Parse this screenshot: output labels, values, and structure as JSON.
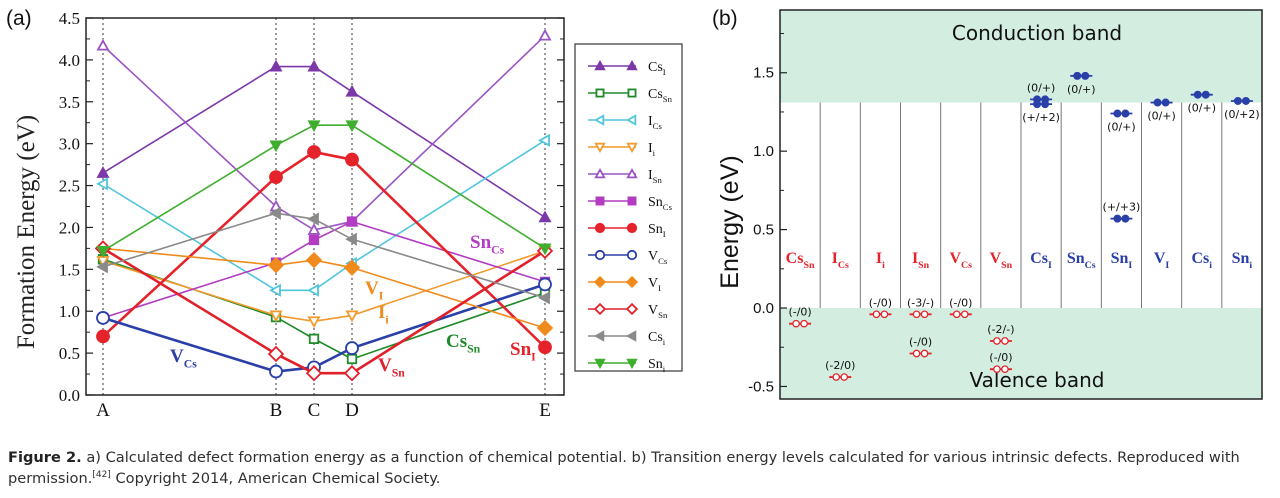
{
  "panel_a": {
    "label": "(a)",
    "ylabel": "Formation Energy (eV)",
    "y_ticks": [
      "0.0",
      "0.5",
      "1.0",
      "1.5",
      "2.0",
      "2.5",
      "3.0",
      "3.5",
      "4.0",
      "4.5"
    ],
    "x_points": [
      "A",
      "B",
      "C",
      "D",
      "E"
    ]
  },
  "panel_b": {
    "label": "(b)",
    "ylabel": "Energy (eV)",
    "y_ticks": [
      "-0.5",
      "0.0",
      "0.5",
      "1.0",
      "1.5"
    ],
    "conduction_band_label": "Conduction band",
    "valence_band_label": "Valence band"
  },
  "caption": {
    "figure_label": "Figure 2.",
    "text_a": " a) Calculated defect formation energy as a function of chemical potential. b) Transition energy levels calculated for various intrinsic defects. Reproduced with permission.",
    "ref": "[42]",
    "text_b": " Copyright 2014, American Chemical Society."
  },
  "chart_data": [
    {
      "type": "line",
      "title": "",
      "xlabel": "",
      "ylabel": "Formation Energy (eV)",
      "ylim": [
        0.0,
        4.5
      ],
      "categories": [
        "A",
        "B",
        "C",
        "D",
        "E"
      ],
      "series": [
        {
          "name": "Cs_I",
          "main": "Cs",
          "sub": "I",
          "color": "#7b38a8",
          "marker": "triangle-up",
          "filled": true,
          "values": [
            2.65,
            3.92,
            3.92,
            3.62,
            2.12
          ]
        },
        {
          "name": "Cs_Sn",
          "main": "Cs",
          "sub": "Sn",
          "color": "#1f8a2a",
          "marker": "square",
          "filled": false,
          "values": [
            1.62,
            0.93,
            0.67,
            0.43,
            1.22
          ]
        },
        {
          "name": "I_Cs",
          "main": "I",
          "sub": "Cs",
          "color": "#4fc6dc",
          "marker": "triangle-left",
          "filled": false,
          "values": [
            2.52,
            1.25,
            1.25,
            1.57,
            3.04
          ]
        },
        {
          "name": "I_i",
          "main": "I",
          "sub": "i",
          "color": "#f29a2e",
          "marker": "triangle-down",
          "filled": false,
          "values": [
            1.6,
            0.95,
            0.88,
            0.95,
            1.72
          ]
        },
        {
          "name": "I_Sn",
          "main": "I",
          "sub": "Sn",
          "color": "#9a55c2",
          "marker": "triangle-up",
          "filled": false,
          "values": [
            4.17,
            2.25,
            1.97,
            2.07,
            4.29
          ]
        },
        {
          "name": "Sn_Cs",
          "main": "Sn",
          "sub": "Cs",
          "color": "#b43cc2",
          "marker": "square",
          "filled": true,
          "values": [
            0.92,
            1.58,
            1.85,
            2.07,
            1.35
          ]
        },
        {
          "name": "Sn_I",
          "main": "Sn",
          "sub": "I",
          "color": "#e4232b",
          "marker": "circle",
          "filled": true,
          "values": [
            0.7,
            2.6,
            2.9,
            2.81,
            0.57
          ]
        },
        {
          "name": "V_Cs",
          "main": "V",
          "sub": "Cs",
          "color": "#2b3fa8",
          "marker": "circle",
          "filled": false,
          "values": [
            0.92,
            0.28,
            0.33,
            0.56,
            1.32
          ]
        },
        {
          "name": "V_I",
          "main": "V",
          "sub": "I",
          "color": "#f08a1c",
          "marker": "diamond",
          "filled": true,
          "values": [
            1.75,
            1.55,
            1.61,
            1.52,
            0.8
          ]
        },
        {
          "name": "V_Sn",
          "main": "V",
          "sub": "Sn",
          "color": "#e0202a",
          "marker": "diamond",
          "filled": false,
          "values": [
            1.75,
            0.49,
            0.26,
            0.26,
            1.72
          ]
        },
        {
          "name": "Cs_i",
          "main": "Cs",
          "sub": "i",
          "color": "#8a8a8a",
          "marker": "triangle-left",
          "filled": true,
          "values": [
            1.53,
            2.17,
            2.1,
            1.86,
            1.16
          ]
        },
        {
          "name": "Sn_i",
          "main": "Sn",
          "sub": "i",
          "color": "#3fae2e",
          "marker": "triangle-down",
          "filled": true,
          "values": [
            1.72,
            2.98,
            3.22,
            3.22,
            1.75
          ]
        }
      ],
      "annotations": [
        {
          "main": "V",
          "sub": "Cs",
          "color": "#2b3fa8",
          "note": "below V_Cs line, left of B"
        },
        {
          "main": "V",
          "sub": "I",
          "color": "#f08a1c",
          "note": "right of C, near 1.4"
        },
        {
          "main": "I",
          "sub": "i",
          "color": "#f08a1c",
          "note": "right of D, near 1.05"
        },
        {
          "main": "Cs",
          "sub": "Sn",
          "color": "#1f8a2a",
          "note": "near 0.75 between D and E"
        },
        {
          "main": "Sn",
          "sub": "I",
          "color": "#e4232b",
          "note": "near 0.6 left of E"
        },
        {
          "main": "V",
          "sub": "Sn",
          "color": "#e0202a",
          "note": "near 0.3 right of D"
        },
        {
          "main": "Sn",
          "sub": "Cs",
          "color": "#b43cc2",
          "note": "near 1.95 between D and E"
        }
      ]
    },
    {
      "type": "scatter",
      "title": "",
      "xlabel": "",
      "ylabel": "Energy (eV)",
      "ylim": [
        -0.58,
        1.9
      ],
      "conduction_band_min": 1.31,
      "valence_band_max": 0.0,
      "y_ticks": [
        -0.5,
        0.0,
        0.5,
        1.0,
        1.5
      ],
      "columns": [
        {
          "main": "Cs",
          "sub": "Sn",
          "color": "#e4232b"
        },
        {
          "main": "I",
          "sub": "Cs",
          "color": "#e4232b"
        },
        {
          "main": "I",
          "sub": "i",
          "color": "#e4232b"
        },
        {
          "main": "I",
          "sub": "Sn",
          "color": "#e4232b"
        },
        {
          "main": "V",
          "sub": "Cs",
          "color": "#e4232b"
        },
        {
          "main": "V",
          "sub": "Sn",
          "color": "#e4232b"
        },
        {
          "main": "Cs",
          "sub": "I",
          "color": "#2b3fa8"
        },
        {
          "main": "Sn",
          "sub": "Cs",
          "color": "#2b3fa8"
        },
        {
          "main": "Sn",
          "sub": "I",
          "color": "#2b3fa8"
        },
        {
          "main": "V",
          "sub": "I",
          "color": "#2b3fa8"
        },
        {
          "main": "Cs",
          "sub": "i",
          "color": "#2b3fa8"
        },
        {
          "main": "Sn",
          "sub": "i",
          "color": "#2b3fa8"
        }
      ],
      "levels": [
        {
          "col": 0,
          "energy": -0.1,
          "label": "(-/0)",
          "kind": "acceptor",
          "label_pos": "above"
        },
        {
          "col": 1,
          "energy": -0.44,
          "label": "(-2/0)",
          "kind": "acceptor",
          "label_pos": "above"
        },
        {
          "col": 2,
          "energy": -0.04,
          "label": "(-/0)",
          "kind": "acceptor",
          "label_pos": "above"
        },
        {
          "col": 3,
          "energy": -0.04,
          "label": "(-3/-)",
          "kind": "acceptor",
          "label_pos": "above"
        },
        {
          "col": 3,
          "energy": -0.29,
          "label": "(-/0)",
          "kind": "acceptor",
          "label_pos": "above"
        },
        {
          "col": 4,
          "energy": -0.04,
          "label": "(-/0)",
          "kind": "acceptor",
          "label_pos": "above"
        },
        {
          "col": 5,
          "energy": -0.21,
          "label": "(-2/-)",
          "kind": "acceptor",
          "label_pos": "above"
        },
        {
          "col": 5,
          "energy": -0.39,
          "label": "(-/0)",
          "kind": "acceptor",
          "label_pos": "above"
        },
        {
          "col": 6,
          "energy": 1.33,
          "label": "(0/+)",
          "kind": "donor",
          "label_pos": "above"
        },
        {
          "col": 6,
          "energy": 1.3,
          "label": "(+/+2)",
          "kind": "donor",
          "label_pos": "below"
        },
        {
          "col": 7,
          "energy": 1.48,
          "label": "(0/+)",
          "kind": "donor",
          "label_pos": "below"
        },
        {
          "col": 8,
          "energy": 1.24,
          "label": "(0/+)",
          "kind": "donor",
          "label_pos": "below"
        },
        {
          "col": 8,
          "energy": 0.57,
          "label": "(+/+3)",
          "kind": "donor",
          "label_pos": "above"
        },
        {
          "col": 9,
          "energy": 1.31,
          "label": "(0/+)",
          "kind": "donor",
          "label_pos": "below"
        },
        {
          "col": 10,
          "energy": 1.36,
          "label": "(0/+)",
          "kind": "donor",
          "label_pos": "below"
        },
        {
          "col": 11,
          "energy": 1.32,
          "label": "(0/+2)",
          "kind": "donor",
          "label_pos": "below"
        }
      ]
    }
  ]
}
